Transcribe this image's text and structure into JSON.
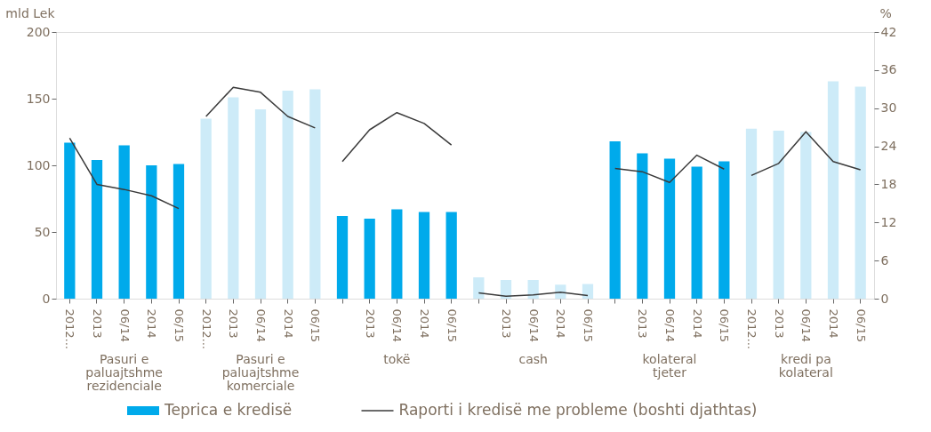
{
  "chart_data": {
    "type": "bar",
    "ylabel": "mld Lek",
    "y2label": "%",
    "categories": [
      "2012...",
      "2013",
      "06/14",
      "2014",
      "06/15",
      "2012...",
      "2013",
      "06/14",
      "2014",
      "06/15",
      null,
      "2013",
      "06/14",
      "2014",
      "06/15",
      null,
      "2013",
      "06/14",
      "2014",
      "06/15",
      null,
      "2013",
      "06/14",
      "2014",
      "06/15",
      "2012...",
      "2013",
      "06/14",
      "2014",
      "06/15"
    ],
    "series": [
      {
        "name": "Teprica e kredisë",
        "colors": [
          "#00aaeb",
          "#00aaeb",
          "#00aaeb",
          "#00aaeb",
          "#00aaeb",
          "#cdebf8",
          "#cdebf8",
          "#cdebf8",
          "#cdebf8",
          "#cdebf8",
          "#00aaeb",
          "#00aaeb",
          "#00aaeb",
          "#00aaeb",
          "#00aaeb",
          "#cdebf8",
          "#cdebf8",
          "#cdebf8",
          "#cdebf8",
          "#cdebf8",
          "#00aaeb",
          "#00aaeb",
          "#00aaeb",
          "#00aaeb",
          "#00aaeb",
          "#cdebf8",
          "#cdebf8",
          "#cdebf8",
          "#cdebf8",
          "#cdebf8"
        ],
        "values": [
          117,
          104,
          115,
          100,
          101,
          135,
          151,
          142,
          156,
          157,
          62,
          60,
          67,
          65,
          65,
          16,
          14,
          14,
          10.5,
          11,
          118,
          109,
          105,
          99,
          103,
          127.5,
          126,
          125,
          163,
          159
        ]
      },
      {
        "name": "Raporti i kredisë me probleme (boshti djathtas)",
        "type": "line",
        "axis": "y2",
        "color": "#3a3a3a",
        "values": [
          25.3,
          18,
          17.2,
          16.2,
          14.2,
          28.7,
          33.3,
          32.5,
          28.7,
          26.9,
          21.6,
          26.6,
          29.3,
          27.6,
          24.2,
          0.9,
          0.4,
          0.6,
          1,
          0.5,
          20.5,
          20,
          18.3,
          22.6,
          20.4,
          19.4,
          21.3,
          26.3,
          21.6,
          20.3
        ]
      }
    ],
    "ylim": [
      0,
      200
    ],
    "yticks": [
      0,
      50,
      100,
      150,
      200
    ],
    "y2lim": [
      0,
      42
    ],
    "y2ticks": [
      0,
      6,
      12,
      18,
      24,
      30,
      36,
      42
    ],
    "annotations": [
      "Pasuri e paluajtshme rezidenciale",
      "Pasuri e paluajtshme komerciale",
      "tokë",
      "cash",
      "kolateral tjeter",
      "kredi pa kolateral"
    ],
    "grid": false,
    "legend": "bottom"
  }
}
